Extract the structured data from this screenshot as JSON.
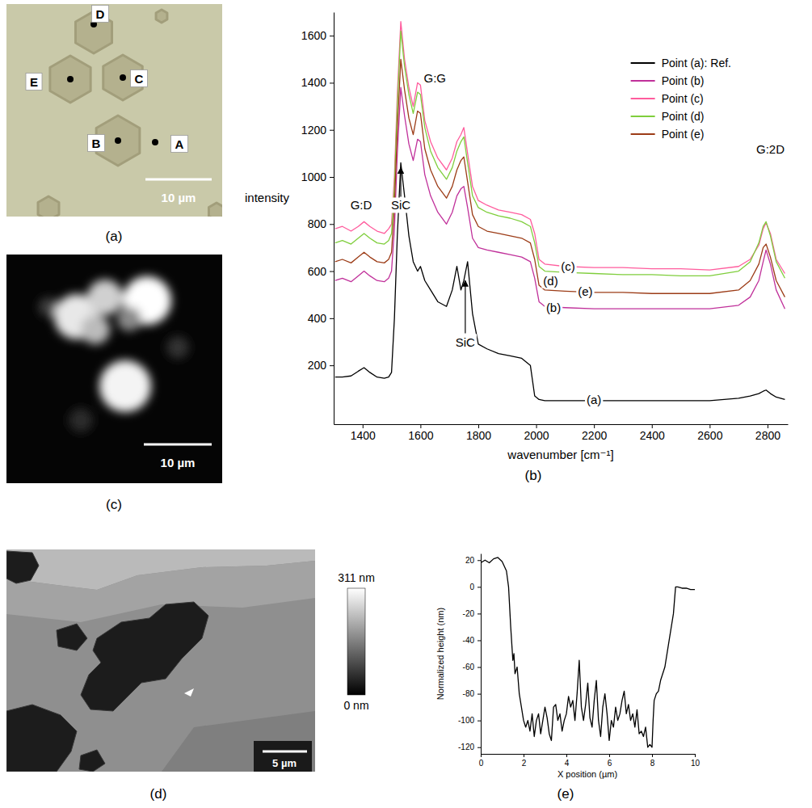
{
  "chart_data": [
    {
      "type": "image",
      "title": "(a)",
      "points": [
        "A",
        "B",
        "C",
        "D",
        "E"
      ],
      "scale_bar": "10 µm"
    },
    {
      "type": "line",
      "title": "(b)",
      "x_label": "wavenumber [cm⁻¹]",
      "y_label": "intensity",
      "x": [
        1305,
        1330,
        1360,
        1385,
        1405,
        1425,
        1450,
        1475,
        1490,
        1500,
        1510,
        1520,
        1532,
        1545,
        1560,
        1575,
        1590,
        1600,
        1615,
        1635,
        1660,
        1690,
        1710,
        1726,
        1740,
        1750,
        1763,
        1780,
        1800,
        1830,
        1870,
        1910,
        1950,
        1980,
        1995,
        2010,
        2030,
        2100,
        2200,
        2300,
        2400,
        2500,
        2600,
        2700,
        2740,
        2770,
        2785,
        2795,
        2810,
        2830,
        2860
      ],
      "series": [
        {
          "name": "Point (a): Ref.",
          "color": "#000000",
          "values": [
            150,
            150,
            155,
            175,
            190,
            170,
            150,
            145,
            150,
            170,
            400,
            750,
            1060,
            920,
            750,
            640,
            600,
            620,
            560,
            520,
            470,
            450,
            520,
            620,
            520,
            560,
            640,
            420,
            290,
            270,
            250,
            240,
            230,
            200,
            70,
            55,
            50,
            50,
            50,
            50,
            50,
            50,
            50,
            60,
            70,
            80,
            90,
            95,
            80,
            65,
            55
          ]
        },
        {
          "name": "Point (b)",
          "color": "#c0309a",
          "values": [
            560,
            570,
            555,
            580,
            600,
            580,
            560,
            555,
            570,
            600,
            780,
            1100,
            1380,
            1260,
            1140,
            1070,
            1160,
            1150,
            1010,
            920,
            850,
            800,
            850,
            920,
            950,
            960,
            870,
            740,
            700,
            690,
            680,
            670,
            660,
            640,
            570,
            470,
            450,
            445,
            440,
            440,
            440,
            440,
            440,
            455,
            490,
            560,
            640,
            690,
            630,
            520,
            440
          ]
        },
        {
          "name": "Point (c)",
          "color": "#ff5c9d",
          "values": [
            780,
            790,
            770,
            790,
            810,
            790,
            770,
            760,
            780,
            800,
            1000,
            1350,
            1660,
            1500,
            1380,
            1300,
            1400,
            1390,
            1240,
            1150,
            1080,
            1030,
            1080,
            1150,
            1180,
            1210,
            1100,
            960,
            900,
            880,
            860,
            850,
            840,
            820,
            760,
            650,
            630,
            620,
            615,
            615,
            610,
            610,
            605,
            620,
            650,
            710,
            780,
            805,
            760,
            650,
            590
          ]
        },
        {
          "name": "Point (d)",
          "color": "#7fce3c",
          "values": [
            720,
            730,
            715,
            740,
            760,
            740,
            720,
            715,
            730,
            760,
            960,
            1300,
            1620,
            1470,
            1350,
            1270,
            1360,
            1350,
            1210,
            1110,
            1040,
            990,
            1040,
            1110,
            1150,
            1170,
            1060,
            920,
            870,
            850,
            835,
            825,
            810,
            790,
            720,
            620,
            600,
            595,
            590,
            585,
            585,
            580,
            580,
            600,
            640,
            720,
            790,
            810,
            750,
            640,
            570
          ]
        },
        {
          "name": "Point (e)",
          "color": "#9c3c17",
          "values": [
            640,
            650,
            635,
            660,
            680,
            660,
            640,
            635,
            650,
            680,
            880,
            1200,
            1500,
            1370,
            1250,
            1180,
            1280,
            1270,
            1120,
            1030,
            960,
            910,
            960,
            1030,
            1070,
            1085,
            980,
            840,
            790,
            770,
            760,
            750,
            740,
            720,
            650,
            540,
            520,
            515,
            510,
            510,
            505,
            505,
            505,
            520,
            560,
            630,
            700,
            715,
            660,
            560,
            490
          ]
        }
      ],
      "xlim": [
        1300,
        2870
      ],
      "ylim": [
        -50,
        1700
      ],
      "xticks": [
        1400,
        1600,
        1800,
        2000,
        2200,
        2400,
        2600,
        2800
      ],
      "yticks": [
        200,
        400,
        600,
        800,
        1000,
        1200,
        1400,
        1600
      ],
      "legend": "upper right",
      "annotations": [
        {
          "text": "G:D",
          "x": 1395,
          "y": 880
        },
        {
          "text": "G:G",
          "x": 1650,
          "y": 1420
        },
        {
          "text": "G:2D",
          "x": 2810,
          "y": 1120
        },
        {
          "text": "SiC",
          "x": 1532,
          "y": 880,
          "arrow": [
            1532,
            1040
          ]
        },
        {
          "text": "SiC",
          "x": 1755,
          "y": 300,
          "arrow": [
            1755,
            560
          ]
        },
        {
          "text": "(c)",
          "x": 2110,
          "y": 620
        },
        {
          "text": "(d)",
          "x": 2050,
          "y": 560
        },
        {
          "text": "(e)",
          "x": 2170,
          "y": 515
        },
        {
          "text": "(b)",
          "x": 2060,
          "y": 445
        },
        {
          "text": "(a)",
          "x": 2200,
          "y": 55
        }
      ]
    },
    {
      "type": "image",
      "title": "(c)",
      "scale_bar": "10 µm"
    },
    {
      "type": "image",
      "title": "(d)",
      "scale_bar": "5 µm",
      "colorbar": {
        "range": [
          0,
          311
        ],
        "ticks": [
          {
            "value": 311,
            "label": "311 nm"
          },
          {
            "value": 0,
            "label": "0 nm"
          }
        ]
      }
    },
    {
      "type": "line",
      "title": "(e)",
      "x_label": "X position (µm)",
      "y_label": "Normalized height (nm)",
      "x": [
        0,
        0.2,
        0.4,
        0.6,
        0.8,
        1.0,
        1.2,
        1.3,
        1.4,
        1.5,
        1.55,
        1.6,
        1.7,
        1.8,
        1.9,
        2.0,
        2.1,
        2.2,
        2.3,
        2.4,
        2.5,
        2.6,
        2.7,
        2.8,
        2.9,
        3.0,
        3.1,
        3.2,
        3.3,
        3.4,
        3.5,
        3.6,
        3.7,
        3.8,
        3.9,
        4.0,
        4.1,
        4.2,
        4.3,
        4.4,
        4.5,
        4.6,
        4.7,
        4.8,
        4.9,
        5.0,
        5.1,
        5.2,
        5.3,
        5.4,
        5.5,
        5.6,
        5.7,
        5.8,
        5.9,
        6.0,
        6.1,
        6.2,
        6.3,
        6.4,
        6.5,
        6.6,
        6.7,
        6.8,
        6.9,
        7.0,
        7.1,
        7.2,
        7.3,
        7.4,
        7.5,
        7.6,
        7.7,
        7.8,
        7.9,
        8.0,
        8.05,
        8.1,
        8.2,
        8.3,
        8.4,
        8.6,
        8.8,
        9.0,
        9.1,
        9.2,
        9.4,
        9.6,
        9.8,
        10
      ],
      "values": [
        18,
        20,
        18,
        21,
        22,
        19,
        12,
        0,
        -30,
        -55,
        -50,
        -65,
        -60,
        -80,
        -90,
        -100,
        -105,
        -100,
        -108,
        -95,
        -112,
        -100,
        -95,
        -110,
        -100,
        -90,
        -98,
        -110,
        -115,
        -90,
        -88,
        -100,
        -95,
        -108,
        -100,
        -95,
        -82,
        -90,
        -85,
        -100,
        -80,
        -55,
        -90,
        -100,
        -88,
        -72,
        -98,
        -105,
        -85,
        -70,
        -100,
        -112,
        -90,
        -80,
        -95,
        -115,
        -100,
        -105,
        -90,
        -100,
        -95,
        -85,
        -78,
        -95,
        -88,
        -100,
        -95,
        -105,
        -92,
        -110,
        -108,
        -112,
        -105,
        -120,
        -118,
        -120,
        -100,
        -85,
        -80,
        -78,
        -70,
        -60,
        -40,
        -20,
        0,
        0,
        -1,
        -1,
        -2,
        -2
      ],
      "color": "#000000",
      "xlim": [
        0,
        10
      ],
      "ylim": [
        -125,
        25
      ],
      "xticks": [
        0,
        2,
        4,
        6,
        8,
        10
      ],
      "yticks": [
        -120,
        -100,
        -80,
        -60,
        -40,
        -20,
        0,
        20
      ]
    }
  ]
}
